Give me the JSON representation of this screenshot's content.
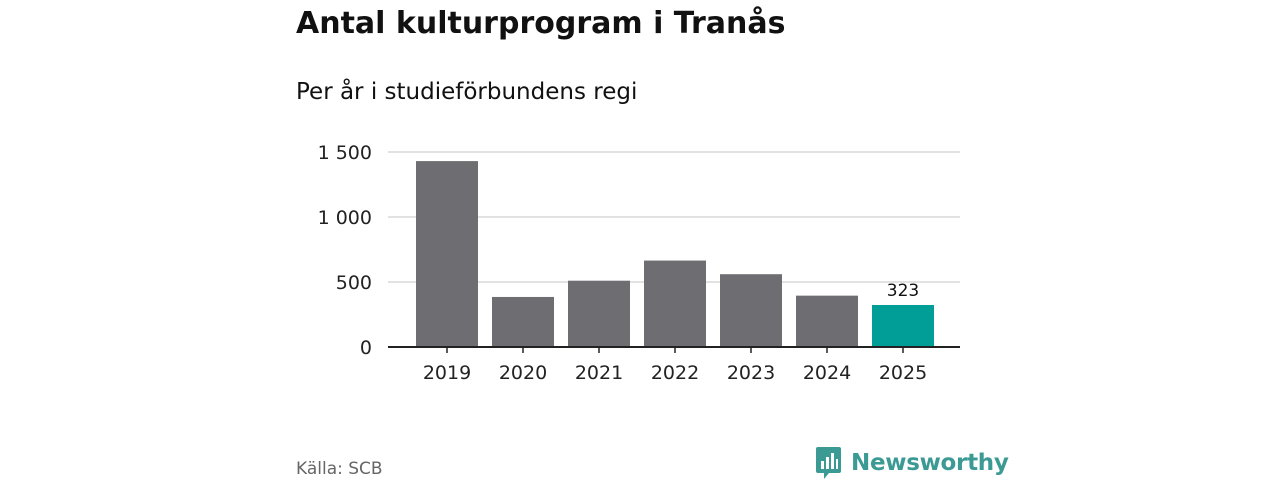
{
  "header": {
    "title": "Antal kulturprogram i Tranås",
    "subtitle": "Per år i studieförbundens regi"
  },
  "footer": {
    "source": "Källa: SCB",
    "brand": "Newsworthy",
    "brand_icon": "bar-chart-speech-bubble-icon"
  },
  "colors": {
    "bar_default": "#6e6d72",
    "bar_highlight": "#009e96",
    "grid": "#d9d9d9",
    "axis": "#222222",
    "brand": "#3c9a95"
  },
  "chart_data": {
    "type": "bar",
    "title": "Antal kulturprogram i Tranås",
    "subtitle": "Per år i studieförbundens regi",
    "categories": [
      "2019",
      "2020",
      "2021",
      "2022",
      "2023",
      "2024",
      "2025"
    ],
    "values": [
      1430,
      385,
      510,
      665,
      560,
      395,
      323
    ],
    "highlight_index": 6,
    "data_labels": [
      {
        "index": 6,
        "text": "323"
      }
    ],
    "ylim": [
      0,
      1500
    ],
    "yticks": [
      0,
      500,
      1000,
      1500
    ],
    "ytick_labels": [
      "0",
      "500",
      "1 000",
      "1 500"
    ],
    "grid": true,
    "legend": "none",
    "xlabel": "",
    "ylabel": ""
  }
}
